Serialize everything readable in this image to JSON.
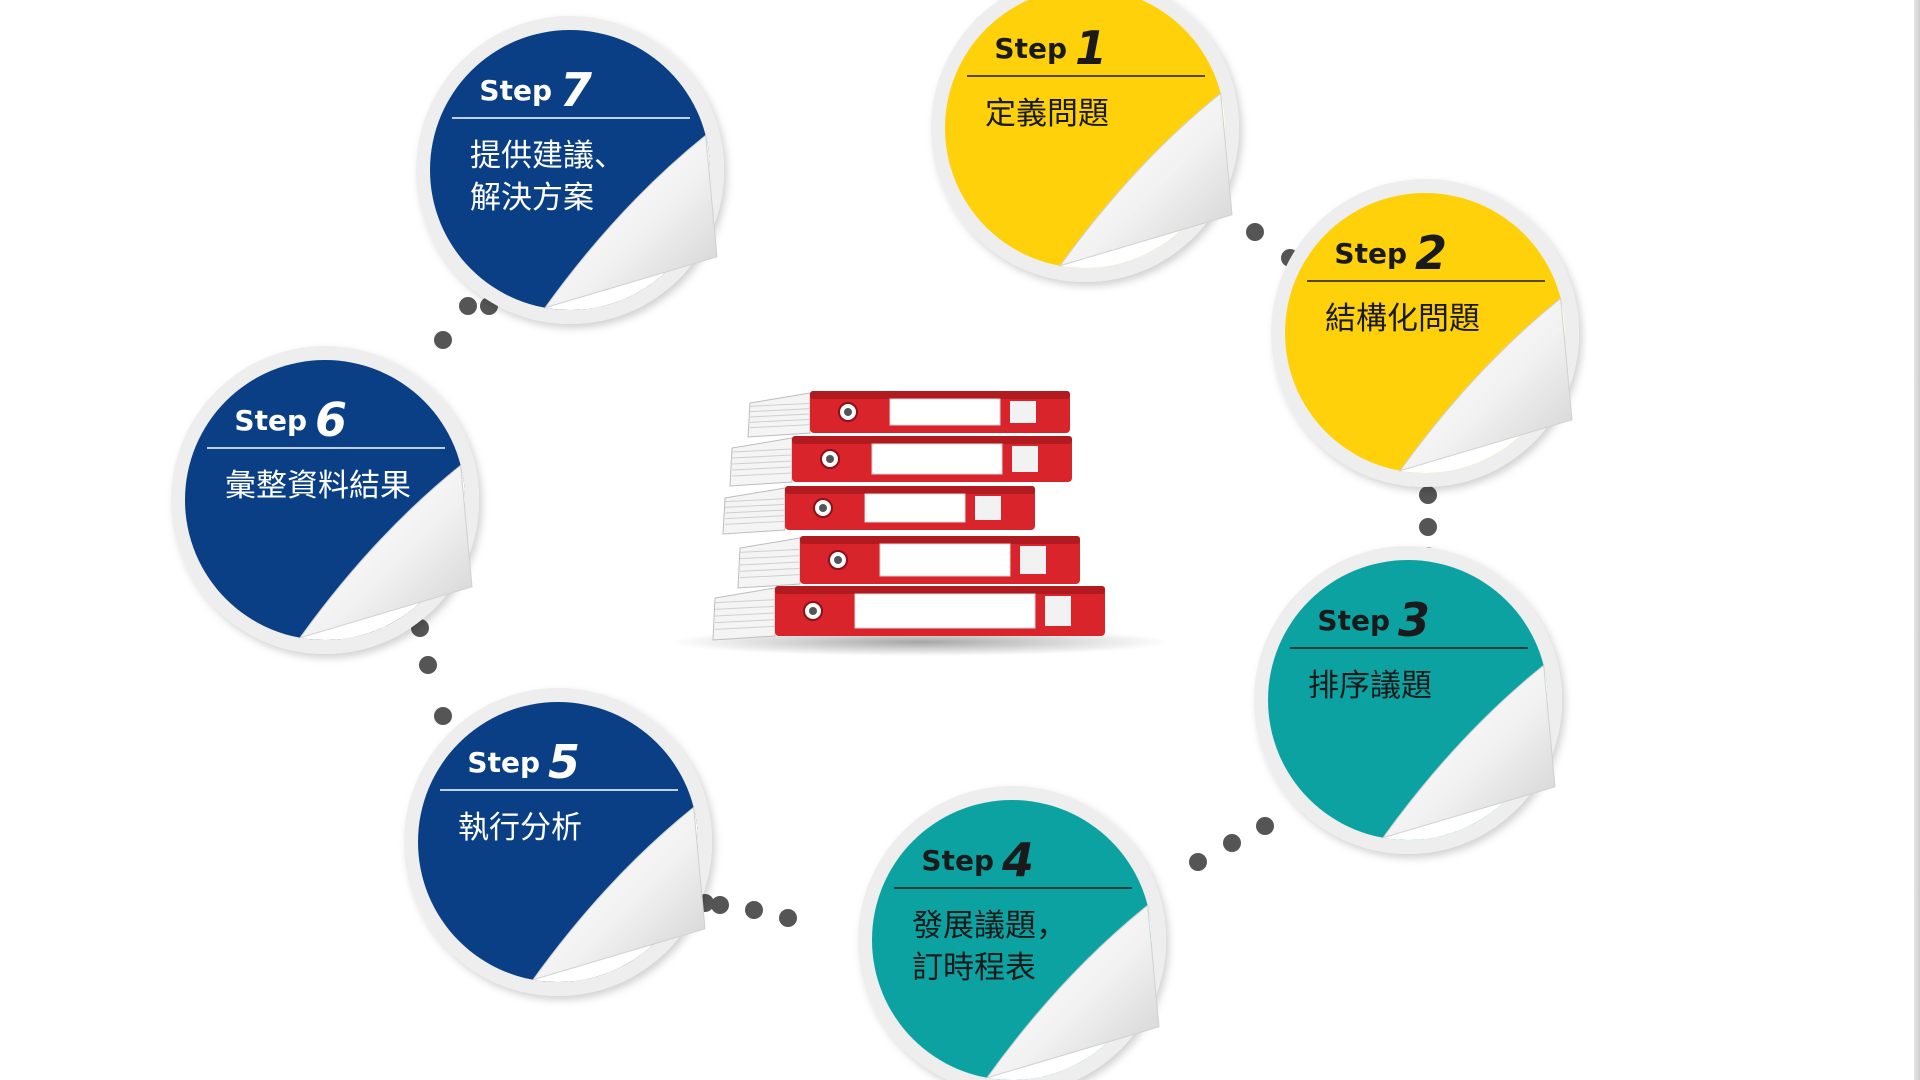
{
  "diagram": {
    "step_word": "Step",
    "colors": {
      "yellow": "#FFD10A",
      "teal": "#0CA2A2",
      "navy": "#0A3F86",
      "rim": "#eeeeee",
      "dots": "#555555",
      "binder_red": "#D8242A"
    },
    "steps": [
      {
        "num": "1",
        "color": "yellow",
        "text_color": "#1a1a1a",
        "lines": [
          "定義問題"
        ]
      },
      {
        "num": "2",
        "color": "yellow",
        "text_color": "#1a1a1a",
        "lines": [
          "結構化問題"
        ]
      },
      {
        "num": "3",
        "color": "teal",
        "text_color": "#1a1a1a",
        "lines": [
          "排序議題"
        ]
      },
      {
        "num": "4",
        "color": "teal",
        "text_color": "#1a1a1a",
        "lines": [
          "發展議題，",
          "訂時程表"
        ]
      },
      {
        "num": "5",
        "color": "navy",
        "text_color": "#ffffff",
        "lines": [
          "執行分析"
        ]
      },
      {
        "num": "6",
        "color": "navy",
        "text_color": "#ffffff",
        "lines": [
          "彙整資料結果"
        ]
      },
      {
        "num": "7",
        "color": "navy",
        "text_color": "#ffffff",
        "lines": [
          "提供建議、",
          "解決方案"
        ]
      }
    ],
    "center_icon": "binder-stack-icon",
    "connector_icon": "dotted-connector"
  }
}
